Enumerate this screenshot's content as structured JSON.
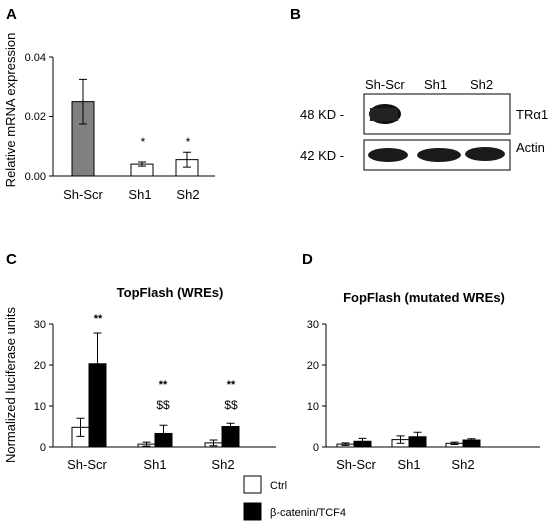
{
  "panels": {
    "A": "A",
    "B": "B",
    "C": "C",
    "D": "D"
  },
  "blot": {
    "lanes": [
      "Sh-Scr",
      "Sh1",
      "Sh2"
    ],
    "markers": [
      "48 KD -",
      "42 KD -"
    ],
    "bands": [
      "TRα1",
      "Actin"
    ]
  },
  "legend": {
    "ctrl": "Ctrl",
    "treat": "β-catenin/TCF4",
    "ctrl_color": "#ffffff",
    "treat_color": "#000000"
  },
  "chart_data": [
    {
      "id": "A",
      "type": "bar",
      "categories": [
        "Sh-Scr",
        "Sh1",
        "Sh2"
      ],
      "values": [
        0.025,
        0.004,
        0.0055
      ],
      "errors": [
        0.0075,
        0.0007,
        0.0025
      ],
      "colors": [
        "#808080",
        "#ffffff",
        "#ffffff"
      ],
      "annotations": [
        "",
        "*",
        "*"
      ],
      "ylabel": "Relative mRNA expression",
      "yticks": [
        "0.00",
        "0.02",
        "0.04"
      ],
      "ylim": [
        0,
        0.04
      ]
    },
    {
      "id": "C",
      "type": "bar",
      "title": "TopFlash (WREs)",
      "categories": [
        "Sh-Scr",
        "Sh1",
        "Sh2"
      ],
      "series": [
        {
          "name": "Ctrl",
          "values": [
            4.8,
            0.7,
            1.0
          ],
          "errors": [
            2.2,
            0.5,
            0.7
          ],
          "color": "#ffffff"
        },
        {
          "name": "β-catenin/TCF4",
          "values": [
            20.3,
            3.3,
            5.0
          ],
          "errors": [
            7.5,
            2.0,
            0.8
          ],
          "color": "#000000"
        }
      ],
      "annotations": [
        [
          "**"
        ],
        [
          "**",
          "$$"
        ],
        [
          "**",
          "$$"
        ]
      ],
      "ylabel": "Normalized luciferase units",
      "yticks": [
        "0",
        "10",
        "20",
        "30"
      ],
      "ylim": [
        0,
        30
      ]
    },
    {
      "id": "D",
      "type": "bar",
      "title": "FopFlash (mutated WREs)",
      "categories": [
        "Sh-Scr",
        "Sh1",
        "Sh2"
      ],
      "series": [
        {
          "name": "Ctrl",
          "values": [
            0.7,
            1.8,
            0.9
          ],
          "errors": [
            0.3,
            0.9,
            0.3
          ],
          "color": "#ffffff"
        },
        {
          "name": "β-catenin/TCF4",
          "values": [
            1.4,
            2.5,
            1.7
          ],
          "errors": [
            0.7,
            1.1,
            0.3
          ],
          "color": "#000000"
        }
      ],
      "yticks": [
        "0",
        "10",
        "20",
        "30"
      ],
      "ylim": [
        0,
        30
      ]
    }
  ]
}
